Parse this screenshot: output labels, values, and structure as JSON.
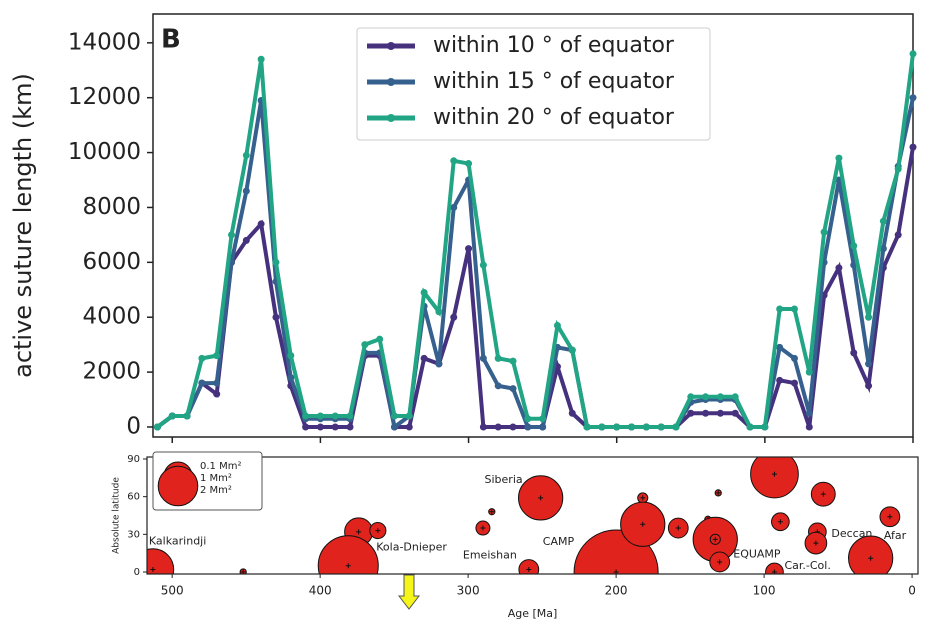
{
  "chart_data": [
    {
      "type": "line",
      "panel_label": "B",
      "ylabel": "active suture length (km)",
      "x": [
        510,
        500,
        490,
        480,
        470,
        460,
        450,
        440,
        430,
        420,
        410,
        400,
        390,
        380,
        370,
        360,
        350,
        340,
        330,
        320,
        310,
        300,
        290,
        280,
        270,
        260,
        250,
        240,
        230,
        220,
        210,
        200,
        190,
        180,
        170,
        160,
        150,
        140,
        130,
        120,
        110,
        100,
        90,
        80,
        70,
        60,
        50,
        40,
        30,
        20,
        10,
        0
      ],
      "series": [
        {
          "name": "within 10$^\\circ$ of equator",
          "display": "within 10 ° of equator",
          "color": "#46317e",
          "values": [
            0,
            400,
            400,
            1600,
            1200,
            6000,
            6800,
            7400,
            4000,
            1500,
            0,
            0,
            0,
            0,
            2600,
            2600,
            0,
            0,
            2500,
            2300,
            4000,
            6500,
            0,
            0,
            0,
            0,
            0,
            2200,
            500,
            0,
            0,
            0,
            0,
            0,
            0,
            0,
            500,
            500,
            500,
            500,
            0,
            0,
            1700,
            1600,
            0,
            4800,
            5800,
            2700,
            1500,
            5800,
            7000,
            10200
          ]
        },
        {
          "name": "within 15$^\\circ$ of equator",
          "display": "within 15 ° of equator",
          "color": "#36608d",
          "values": [
            0,
            400,
            400,
            1600,
            1600,
            6000,
            8600,
            11900,
            5300,
            1800,
            300,
            300,
            300,
            300,
            2700,
            2700,
            0,
            400,
            4400,
            2300,
            8000,
            9000,
            2500,
            1500,
            1400,
            0,
            0,
            2900,
            2800,
            0,
            0,
            0,
            0,
            0,
            0,
            0,
            900,
            1000,
            1000,
            1000,
            0,
            0,
            2900,
            2500,
            500,
            6000,
            9000,
            5900,
            2300,
            6500,
            9500,
            12000
          ]
        },
        {
          "name": "within 20$^\\circ$ of equator",
          "display": "within 20 ° of equator",
          "color": "#21a585",
          "values": [
            0,
            400,
            400,
            2500,
            2600,
            7000,
            9900,
            13400,
            6000,
            2600,
            400,
            400,
            400,
            400,
            3000,
            3200,
            400,
            400,
            4900,
            4200,
            9700,
            9600,
            5900,
            2500,
            2400,
            300,
            300,
            3700,
            2800,
            0,
            0,
            0,
            0,
            0,
            0,
            0,
            1100,
            1100,
            1100,
            1100,
            0,
            0,
            4300,
            4300,
            2000,
            7100,
            9800,
            6600,
            4000,
            7500,
            9400,
            13600
          ]
        }
      ],
      "xlim": [
        513,
        0
      ],
      "xticks": [
        500,
        400,
        300,
        200,
        100,
        0
      ],
      "ylim": [
        -365,
        15050
      ],
      "yticks": [
        0,
        2000,
        4000,
        6000,
        8000,
        10000,
        12000,
        14000
      ]
    },
    {
      "type": "scatter",
      "xlabel": "Age [Ma]",
      "ylabel": "Absolute latitude",
      "color": "#e0241d",
      "x": [
        513,
        452,
        374,
        361,
        381,
        290,
        284,
        251,
        259,
        200,
        182,
        182,
        158,
        138,
        131,
        133,
        133,
        130,
        93,
        89,
        93,
        60,
        64,
        65,
        15,
        28
      ],
      "values": [
        2,
        0,
        32,
        33,
        5,
        35,
        48,
        59,
        2,
        0,
        59,
        38,
        35,
        42,
        63,
        26,
        26,
        8,
        78,
        40,
        0,
        62,
        32,
        23,
        44,
        11
      ],
      "sizes": [
        2.2,
        0.05,
        1.0,
        0.33,
        4.6,
        0.25,
        0.05,
        2.5,
        0.5,
        9,
        0.13,
        2.5,
        0.5,
        0.05,
        0.05,
        2.5,
        0.13,
        0.5,
        2.9,
        0.4,
        0.4,
        0.73,
        0.4,
        0.6,
        0.5,
        2.5
      ],
      "labels": [
        "Kalkarindji",
        null,
        null,
        null,
        "Kola-Dnieper",
        null,
        null,
        "Siberia",
        "Emeishan",
        "CAMP",
        null,
        null,
        null,
        null,
        null,
        "EQUAMP",
        null,
        null,
        null,
        null,
        "Car.-Col.",
        null,
        "Deccan",
        null,
        "Afar",
        null
      ],
      "size_legend": [
        {
          "value": 0.1,
          "label": "0.1 Mm²"
        },
        {
          "value": 1,
          "label": "1 Mm²"
        },
        {
          "value": 2,
          "label": "2 Mm²"
        }
      ],
      "xlim": [
        517,
        -4
      ],
      "xticks": [
        500,
        400,
        300,
        200,
        100,
        0
      ],
      "ylim": [
        0,
        90
      ],
      "yticks": [
        0,
        30,
        60,
        90
      ]
    }
  ]
}
